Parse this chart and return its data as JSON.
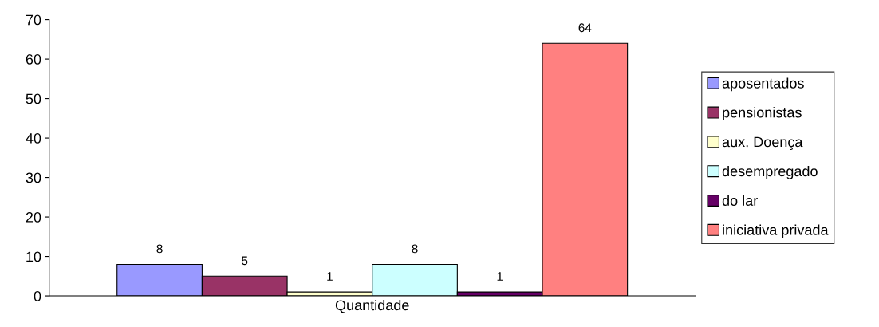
{
  "chart_data": {
    "type": "bar",
    "categories": [
      "Quantidade"
    ],
    "series": [
      {
        "name": "aposentados",
        "color": "#9999ff",
        "values": [
          8
        ]
      },
      {
        "name": "pensionistas",
        "color": "#993366",
        "values": [
          5
        ]
      },
      {
        "name": "aux. Doença",
        "color": "#ffffcc",
        "values": [
          1
        ]
      },
      {
        "name": "desempregado",
        "color": "#ccffff",
        "values": [
          8
        ]
      },
      {
        "name": "do lar",
        "color": "#660066",
        "values": [
          1
        ]
      },
      {
        "name": "iniciativa privada",
        "color": "#ff8080",
        "values": [
          64
        ]
      }
    ],
    "ylim": [
      0,
      70
    ],
    "yticks": [
      0,
      10,
      20,
      30,
      40,
      50,
      60,
      70
    ],
    "data_labels": true,
    "grid": false,
    "legend": "right"
  }
}
